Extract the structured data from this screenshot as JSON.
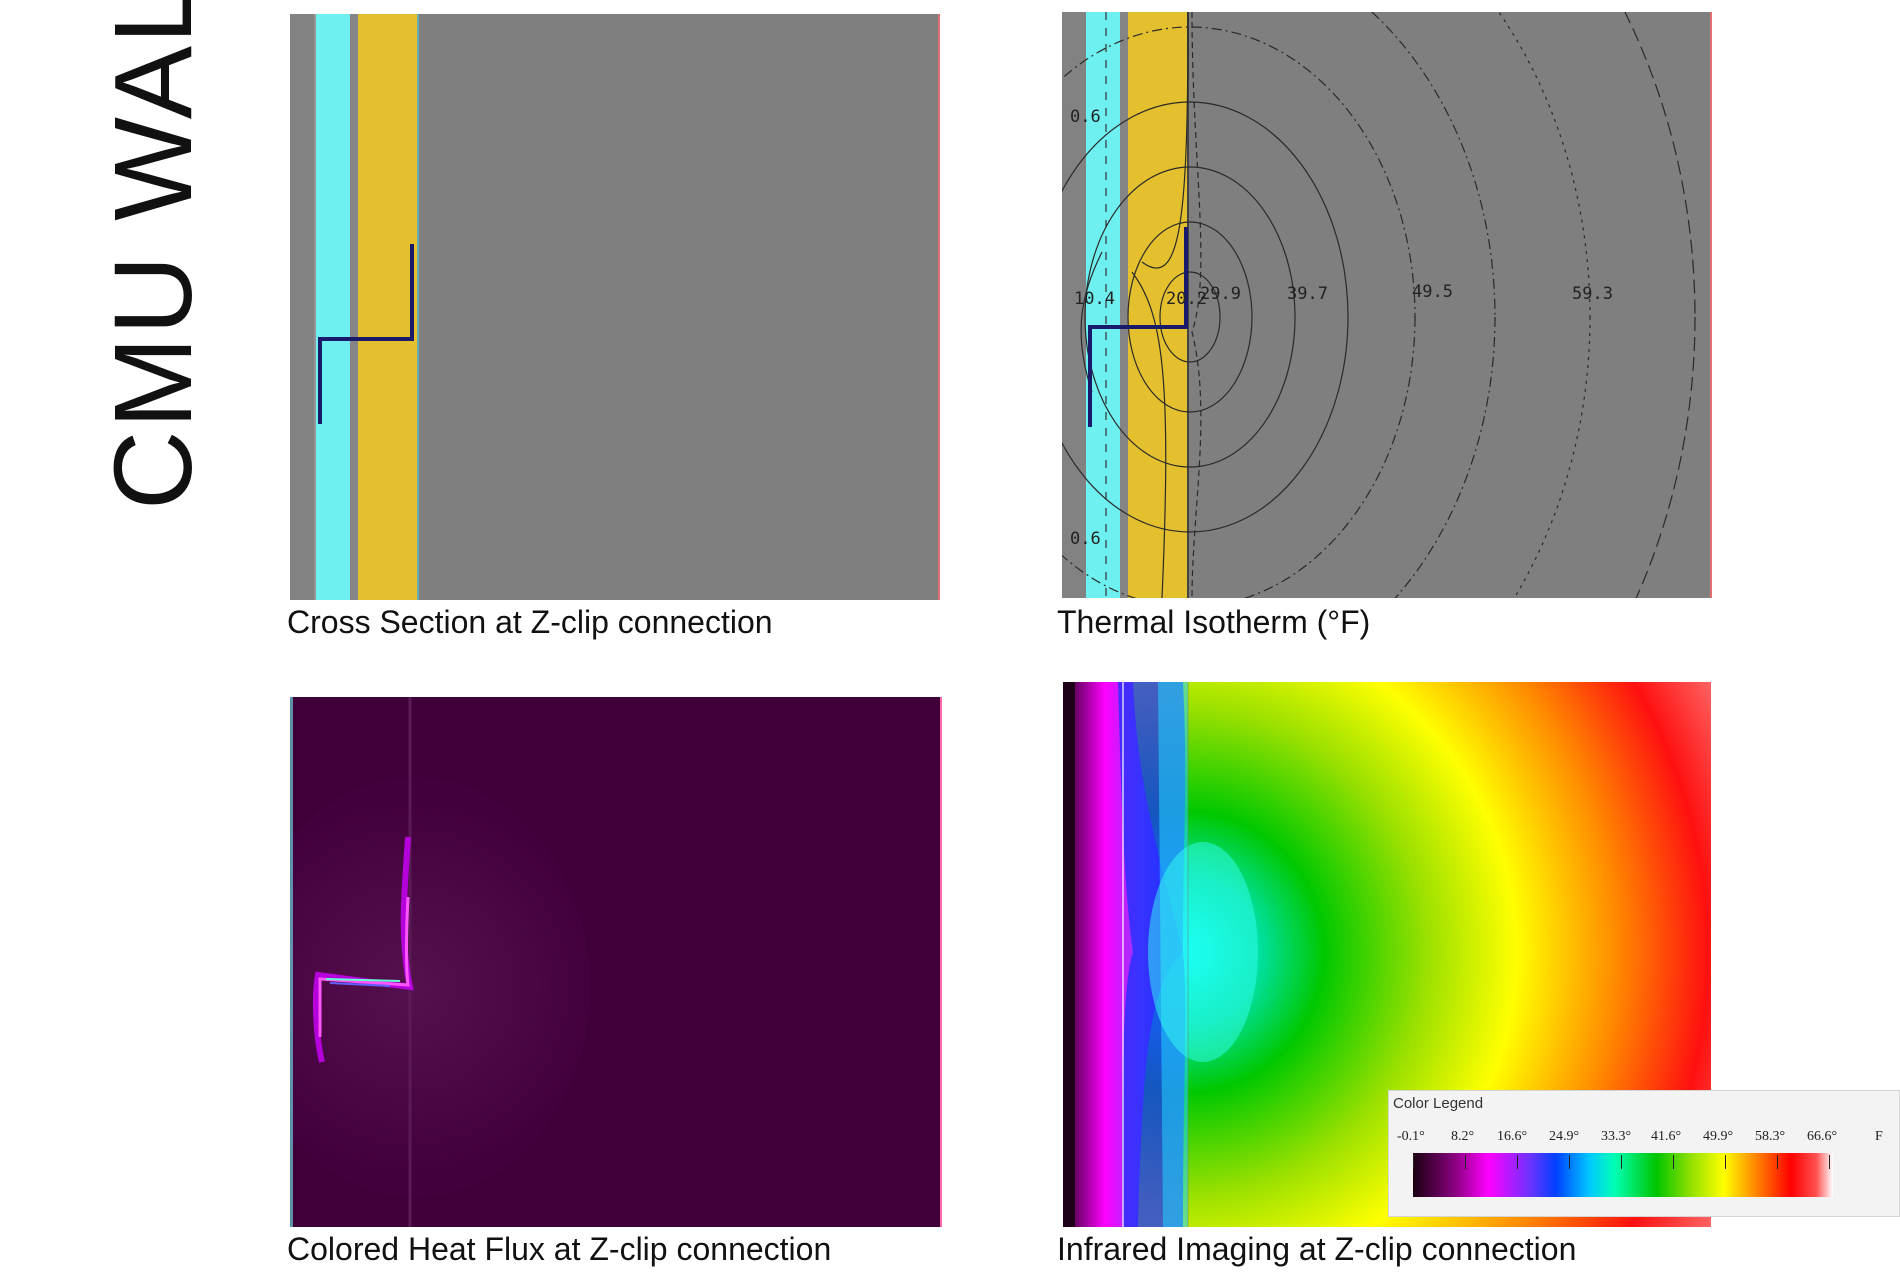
{
  "title": "CMU WALL",
  "panels": {
    "cross_section": {
      "caption": "Cross Section at Z-clip connection"
    },
    "isotherm": {
      "caption": "Thermal Isotherm (°F)",
      "labels": [
        "0.6",
        "10.4",
        "20.2",
        "29.9",
        "39.7",
        "49.5",
        "59.3",
        "0.6"
      ]
    },
    "heat_flux": {
      "caption": "Colored Heat Flux at Z-clip connection"
    },
    "infrared": {
      "caption": "Infrared Imaging at Z-clip connection"
    }
  },
  "legend": {
    "title": "Color Legend",
    "ticks": [
      "-0.1°",
      "8.2°",
      "16.6°",
      "24.9°",
      "33.3°",
      "41.6°",
      "49.9°",
      "58.3°",
      "66.6°"
    ],
    "unit": "F"
  },
  "colors": {
    "insulation": "#6ff0f0",
    "sheathing": "#e4c02e",
    "cmu": "#7f7f7f",
    "clip": "#1a1a6a",
    "flux_background": "#3f003a"
  }
}
